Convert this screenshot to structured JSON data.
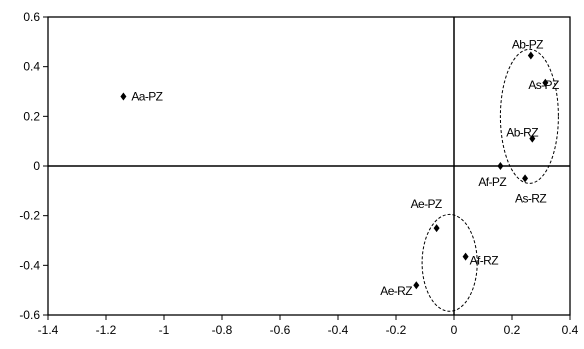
{
  "chart_data": {
    "type": "scatter",
    "title": "",
    "xlabel": "",
    "ylabel": "",
    "xlim": [
      -1.4,
      0.4
    ],
    "ylim": [
      -0.6,
      0.6
    ],
    "xticks": [
      -1.4,
      -1.2,
      -1,
      -0.8,
      -0.6,
      -0.4,
      -0.2,
      0,
      0.2,
      0.4
    ],
    "xtick_labels": [
      "-1.4",
      "-1.2",
      "-1",
      "-0.8",
      "-0.6",
      "-0.4",
      "-0.2",
      "0",
      "0.2",
      "0.4"
    ],
    "yticks": [
      -0.6,
      -0.4,
      -0.2,
      0,
      0.2,
      0.4,
      0.6
    ],
    "ytick_labels": [
      "-0.6",
      "-0.4",
      "-0.2",
      "0",
      "0.2",
      "0.4",
      "0.6"
    ],
    "grid": false,
    "reference_lines": [
      {
        "axis": "x",
        "value": 0
      },
      {
        "axis": "y",
        "value": 0
      }
    ],
    "points": [
      {
        "label": "Aa-PZ",
        "x": -1.14,
        "y": 0.28
      },
      {
        "label": "Ab-PZ",
        "x": 0.265,
        "y": 0.445
      },
      {
        "label": "As-PZ",
        "x": 0.315,
        "y": 0.335
      },
      {
        "label": "Ab-RZ",
        "x": 0.27,
        "y": 0.11
      },
      {
        "label": "Af-PZ",
        "x": 0.16,
        "y": 0.0
      },
      {
        "label": "As-RZ",
        "x": 0.245,
        "y": -0.05
      },
      {
        "label": "Ae-PZ",
        "x": -0.06,
        "y": -0.25
      },
      {
        "label": "Af-RZ",
        "x": 0.04,
        "y": -0.365
      },
      {
        "label": "Ae-RZ",
        "x": -0.13,
        "y": -0.48
      }
    ],
    "ellipses": [
      {
        "cx": 0.26,
        "cy": 0.2,
        "rx": 0.1,
        "ry": 0.27
      },
      {
        "cx": -0.015,
        "cy": -0.39,
        "rx": 0.095,
        "ry": 0.195
      }
    ],
    "marker": "diamond",
    "color": "#000000"
  }
}
